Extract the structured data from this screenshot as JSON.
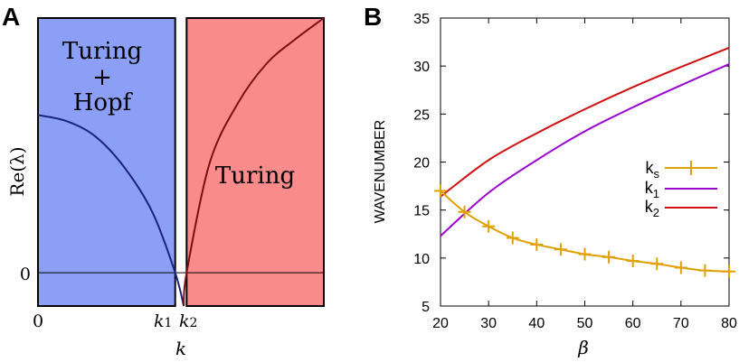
{
  "chart_data": [
    {
      "panel": "A",
      "type": "line",
      "xlabel": "k",
      "ylabel": "Re(λ)",
      "x_ticks": [
        "0",
        "k1",
        "k2"
      ],
      "y_ticks": [
        "0"
      ],
      "regions": [
        {
          "name": "Turing + Hopf",
          "lines": [
            "Turing",
            "+",
            "Hopf"
          ],
          "color": "#8b9ff7",
          "x": [
            0,
            2.4
          ]
        },
        {
          "name": "Turing",
          "lines": [
            "Turing"
          ],
          "color": "#fa8b8b",
          "x": [
            2.6,
            5.0
          ]
        }
      ],
      "boundaries": {
        "k1": 2.4,
        "k2": 2.6
      },
      "series": [
        {
          "name": "left branch",
          "color": "#1a237e",
          "x": [
            0,
            0.5,
            1.0,
            1.5,
            2.0,
            2.4,
            2.55
          ],
          "y": [
            2.6,
            2.5,
            2.25,
            1.75,
            1.0,
            0.0,
            -0.55
          ]
        },
        {
          "name": "right branch",
          "color": "#7a1010",
          "x": [
            2.55,
            2.6,
            3.0,
            3.5,
            4.0,
            4.5,
            5.0
          ],
          "y": [
            -0.55,
            0.0,
            1.8,
            2.8,
            3.45,
            3.85,
            4.2
          ]
        }
      ],
      "xlim": [
        0,
        5.0
      ],
      "ylim": [
        -0.55,
        4.2
      ]
    },
    {
      "panel": "B",
      "type": "line",
      "xlabel": "β",
      "ylabel": "WAVENUMBER",
      "xlim": [
        20,
        80
      ],
      "ylim": [
        5,
        35
      ],
      "x_ticks": [
        "20",
        "30",
        "40",
        "50",
        "60",
        "70",
        "80"
      ],
      "y_ticks": [
        "5",
        "10",
        "15",
        "20",
        "25",
        "30",
        "35"
      ],
      "x_tick_values": [
        20,
        30,
        40,
        50,
        60,
        70,
        80
      ],
      "y_tick_values": [
        5,
        10,
        15,
        20,
        25,
        30,
        35
      ],
      "legend": {
        "position": "right",
        "entries": [
          "ks",
          "k1",
          "k2"
        ]
      },
      "series": [
        {
          "name": "ks",
          "color": "#e0a000",
          "markers": true,
          "x": [
            20,
            25,
            30,
            35,
            40,
            45,
            50,
            55,
            60,
            65,
            70,
            75,
            80
          ],
          "y": [
            17.0,
            14.8,
            13.3,
            12.1,
            11.4,
            10.9,
            10.4,
            10.1,
            9.7,
            9.4,
            9.0,
            8.7,
            8.6
          ]
        },
        {
          "name": "k1",
          "color": "#9a00d0",
          "markers": false,
          "x": [
            20,
            30,
            40,
            50,
            60,
            70,
            80
          ],
          "y": [
            12.3,
            16.8,
            20.2,
            23.2,
            25.7,
            28.0,
            30.2
          ]
        },
        {
          "name": "k2",
          "color": "#d01010",
          "markers": false,
          "x": [
            20,
            30,
            40,
            50,
            60,
            70,
            80
          ],
          "y": [
            16.4,
            20.2,
            23.0,
            25.5,
            27.8,
            29.9,
            31.9
          ]
        }
      ]
    }
  ],
  "labels": {
    "panel_a": "A",
    "panel_b": "B",
    "legend_ks_main": "k",
    "legend_ks_sub": "s",
    "legend_k1_main": "k",
    "legend_k1_sub": "1",
    "legend_k2_main": "k",
    "legend_k2_sub": "2",
    "a_tick_k1_main": "k",
    "a_tick_k1_sub": "1",
    "a_tick_k2_main": "k",
    "a_tick_k2_sub": "2"
  }
}
